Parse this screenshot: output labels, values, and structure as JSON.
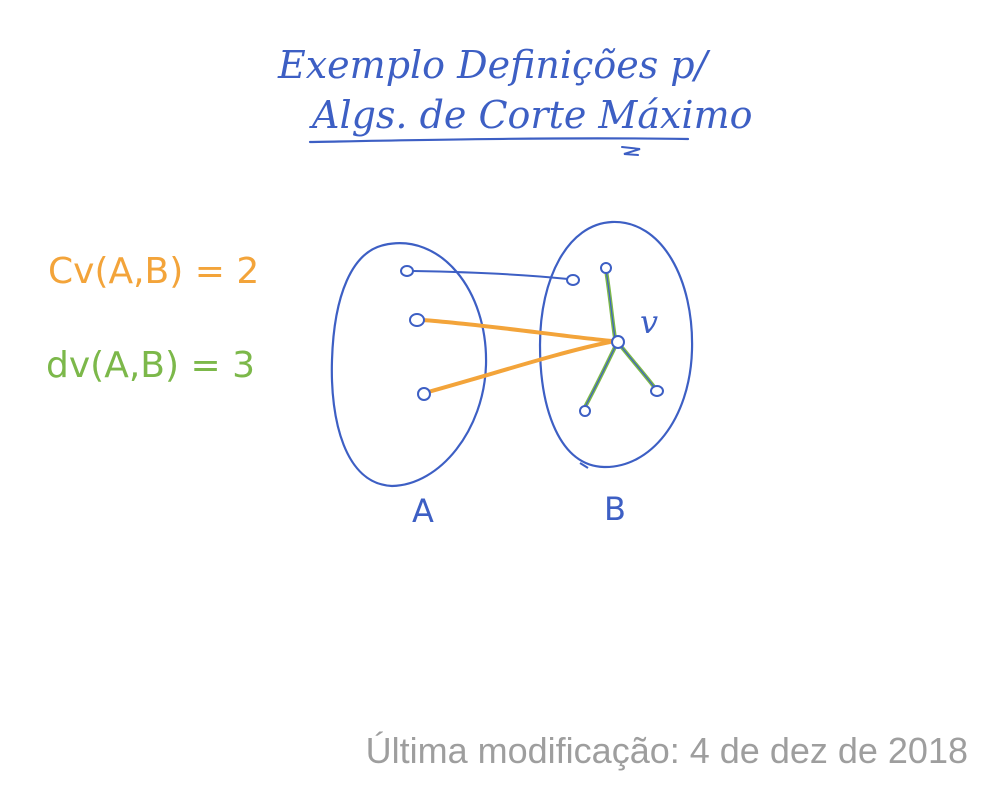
{
  "title": {
    "line1": "Exemplo Definições p/",
    "line2": "Algs. de Corte Máximo"
  },
  "formulas": {
    "cut": "Cv(A,B) = 2",
    "degree": "dv(A,B) = 3"
  },
  "sets": {
    "a_label": "A",
    "b_label": "B"
  },
  "vertex_label": "v",
  "colors": {
    "ink_blue": "#3d5fc4",
    "orange": "#f3a43a",
    "green": "#7cb84a",
    "footer_gray": "#9e9e9e"
  },
  "footer": {
    "last_modified": "Última modificação: 4 de dez de 2018"
  }
}
